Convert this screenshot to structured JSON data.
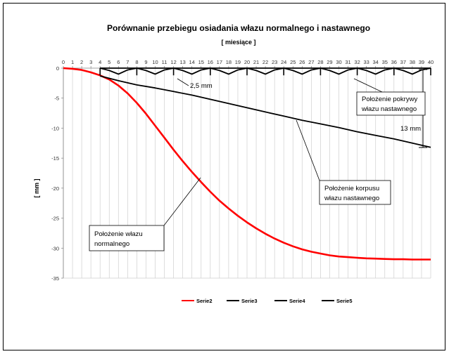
{
  "chart_data": {
    "type": "line",
    "title": "Porównanie przebiegu osiadania włazu normalnego i nastawnego",
    "xlabel": "[ miesiące ]",
    "ylabel": "[ mm ]",
    "x_ticks": [
      "0",
      "1",
      "2",
      "3",
      "4",
      "5",
      "6",
      "7",
      "8",
      "9",
      "10",
      "11",
      "12",
      "13",
      "14",
      "15",
      "16",
      "17",
      "18",
      "19",
      "20",
      "21",
      "22",
      "23",
      "24",
      "25",
      "26",
      "27",
      "28",
      "29",
      "30",
      "31",
      "32",
      "33",
      "34",
      "35",
      "36",
      "37",
      "38",
      "39",
      "40"
    ],
    "y_ticks": [
      "0",
      "-5",
      "-10",
      "-15",
      "-20",
      "-25",
      "-30",
      "-35"
    ],
    "xlim": [
      0,
      40
    ],
    "ylim": [
      -35,
      0
    ],
    "x_axis_position": "top",
    "grid": "vertical",
    "legend_position": "bottom",
    "series": [
      {
        "name": "Serie2",
        "color": "#ff0000",
        "x": [
          0,
          1,
          2,
          3,
          4,
          5,
          6,
          7,
          8,
          9,
          10,
          11,
          12,
          13,
          14,
          15,
          16,
          17,
          18,
          19,
          20,
          21,
          22,
          23,
          24,
          25,
          26,
          27,
          28,
          29,
          30,
          31,
          32,
          33,
          34,
          35,
          36,
          37,
          38,
          39,
          40
        ],
        "y": [
          0,
          -0.1,
          -0.3,
          -0.7,
          -1.2,
          -1.9,
          -2.9,
          -4.2,
          -5.8,
          -7.6,
          -9.6,
          -11.6,
          -13.6,
          -15.5,
          -17.3,
          -19.0,
          -20.6,
          -22.1,
          -23.4,
          -24.6,
          -25.7,
          -26.7,
          -27.6,
          -28.4,
          -29.1,
          -29.7,
          -30.2,
          -30.6,
          -30.9,
          -31.2,
          -31.4,
          -31.5,
          -31.6,
          -31.7,
          -31.75,
          -31.8,
          -31.85,
          -31.85,
          -31.9,
          -31.9,
          -31.9
        ]
      },
      {
        "name": "Serie3",
        "color": "#000000",
        "x": [
          4,
          6,
          8,
          10,
          12,
          14,
          16,
          18,
          20,
          22,
          24,
          26,
          28,
          30,
          32,
          34,
          36,
          38,
          40
        ],
        "y": [
          -1.3,
          -2.1,
          -2.8,
          -3.3,
          -3.9,
          -4.5,
          -5.2,
          -5.9,
          -6.6,
          -7.3,
          -8.0,
          -8.7,
          -9.3,
          -9.9,
          -10.6,
          -11.2,
          -11.8,
          -12.5,
          -13.2
        ]
      },
      {
        "name": "Serie4",
        "color": "#000000",
        "x": [
          4,
          5,
          6,
          7,
          8,
          9,
          10,
          11,
          12,
          13,
          14,
          15,
          16,
          17,
          18,
          19,
          20,
          21,
          22,
          23,
          24,
          25,
          26,
          27,
          28,
          29,
          30,
          31,
          32,
          33,
          34,
          35,
          36,
          37,
          38,
          39,
          40
        ],
        "y": [
          0,
          -0.4,
          -1.0,
          -0.3,
          0,
          -0.4,
          -1.0,
          -0.3,
          0,
          -0.4,
          -1.0,
          -0.3,
          0,
          -0.4,
          -1.0,
          -0.3,
          0,
          -0.4,
          -1.0,
          -0.3,
          0,
          -0.4,
          -1.0,
          -0.3,
          0,
          -0.4,
          -1.0,
          -0.3,
          0,
          -0.4,
          -1.0,
          -0.3,
          0,
          -0.4,
          -1.0,
          -0.3,
          0
        ]
      },
      {
        "name": "Serie5",
        "color": "#000000",
        "x": [
          4,
          8,
          12,
          16,
          20,
          24,
          28,
          32,
          36,
          40
        ],
        "y": [
          0,
          0,
          0,
          0,
          0,
          0,
          0,
          0,
          0,
          0
        ]
      }
    ],
    "annotations": [
      {
        "text": "2,5 mm"
      },
      {
        "text": "13 mm"
      },
      {
        "lines": [
          "Położenie pokrywy",
          "włazu nastawnego"
        ]
      },
      {
        "lines": [
          "Położenie korpusu",
          "włazu nastawnego"
        ]
      },
      {
        "lines": [
          "Położenie włazu",
          "normalnego"
        ]
      }
    ]
  }
}
